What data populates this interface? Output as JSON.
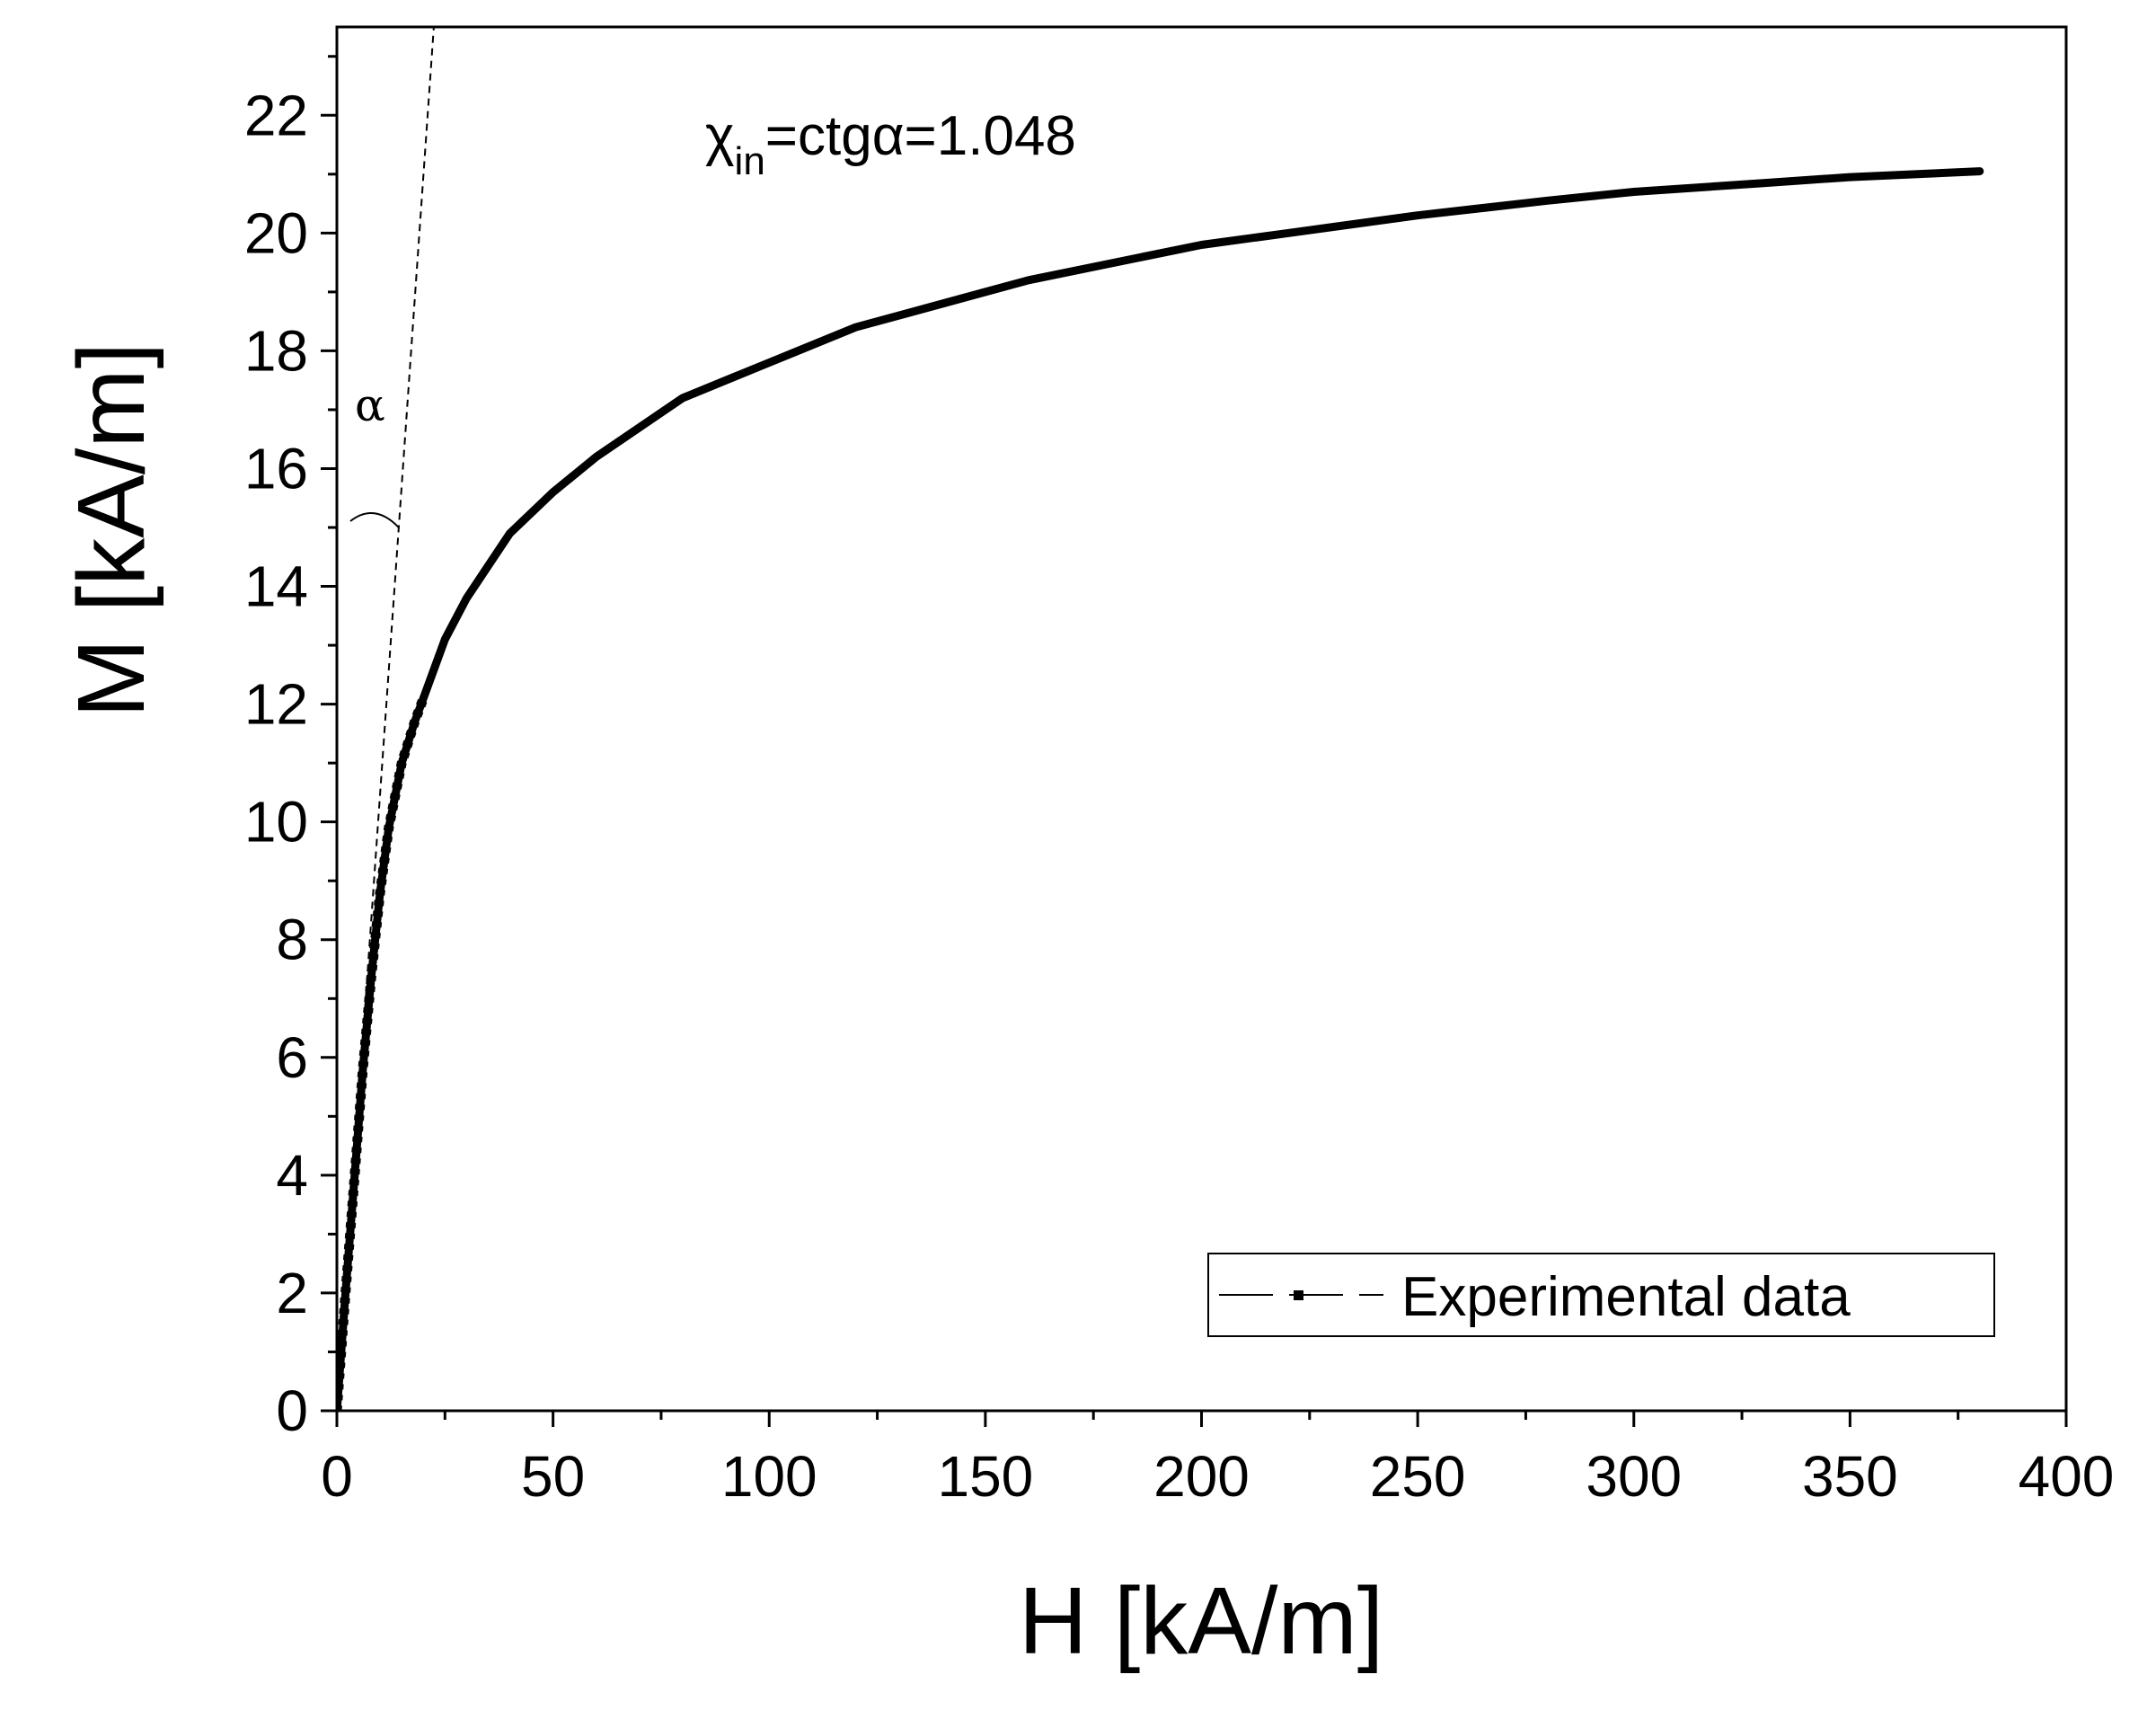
{
  "chart_data": {
    "type": "line",
    "title": "",
    "xlabel": "H [kA/m]",
    "ylabel": "M [kA/m]",
    "xlim": [
      0,
      400
    ],
    "ylim": [
      0,
      23.5
    ],
    "x_ticks": [
      0,
      50,
      100,
      150,
      200,
      250,
      300,
      350,
      400
    ],
    "y_ticks": [
      0,
      2,
      4,
      6,
      8,
      10,
      12,
      14,
      16,
      18,
      20,
      22
    ],
    "x_tick_labels": [
      "0",
      "50",
      "100",
      "150",
      "200",
      "250",
      "300",
      "350",
      "400"
    ],
    "y_tick_labels": [
      "0",
      "2",
      "4",
      "6",
      "8",
      "10",
      "12",
      "14",
      "16",
      "18",
      "20",
      "22"
    ],
    "grid": false,
    "legend_position": "bottom-right",
    "series": [
      {
        "name": "Experimental data",
        "color": "#000000",
        "x": [
          0,
          1,
          2,
          4,
          6,
          8,
          10,
          12,
          15,
          18,
          20,
          25,
          30,
          40,
          50,
          60,
          70,
          80,
          90,
          100,
          120,
          140,
          150,
          160,
          180,
          200,
          220,
          250,
          280,
          300,
          330,
          350,
          380
        ],
        "y": [
          0,
          1.0,
          2.0,
          3.9,
          5.8,
          7.4,
          8.8,
          9.9,
          11.0,
          11.7,
          12.1,
          13.1,
          13.8,
          14.9,
          15.6,
          16.2,
          16.7,
          17.2,
          17.5,
          17.8,
          18.4,
          18.8,
          19.0,
          19.2,
          19.5,
          19.8,
          20.0,
          20.3,
          20.55,
          20.7,
          20.85,
          20.95,
          21.05
        ]
      }
    ],
    "annotations": {
      "chi_symbol": "χ",
      "chi_subscript": "in",
      "chi_rest": "=ctgα=1.048",
      "alpha_label": "α",
      "tangent_slope": 1.048
    }
  }
}
